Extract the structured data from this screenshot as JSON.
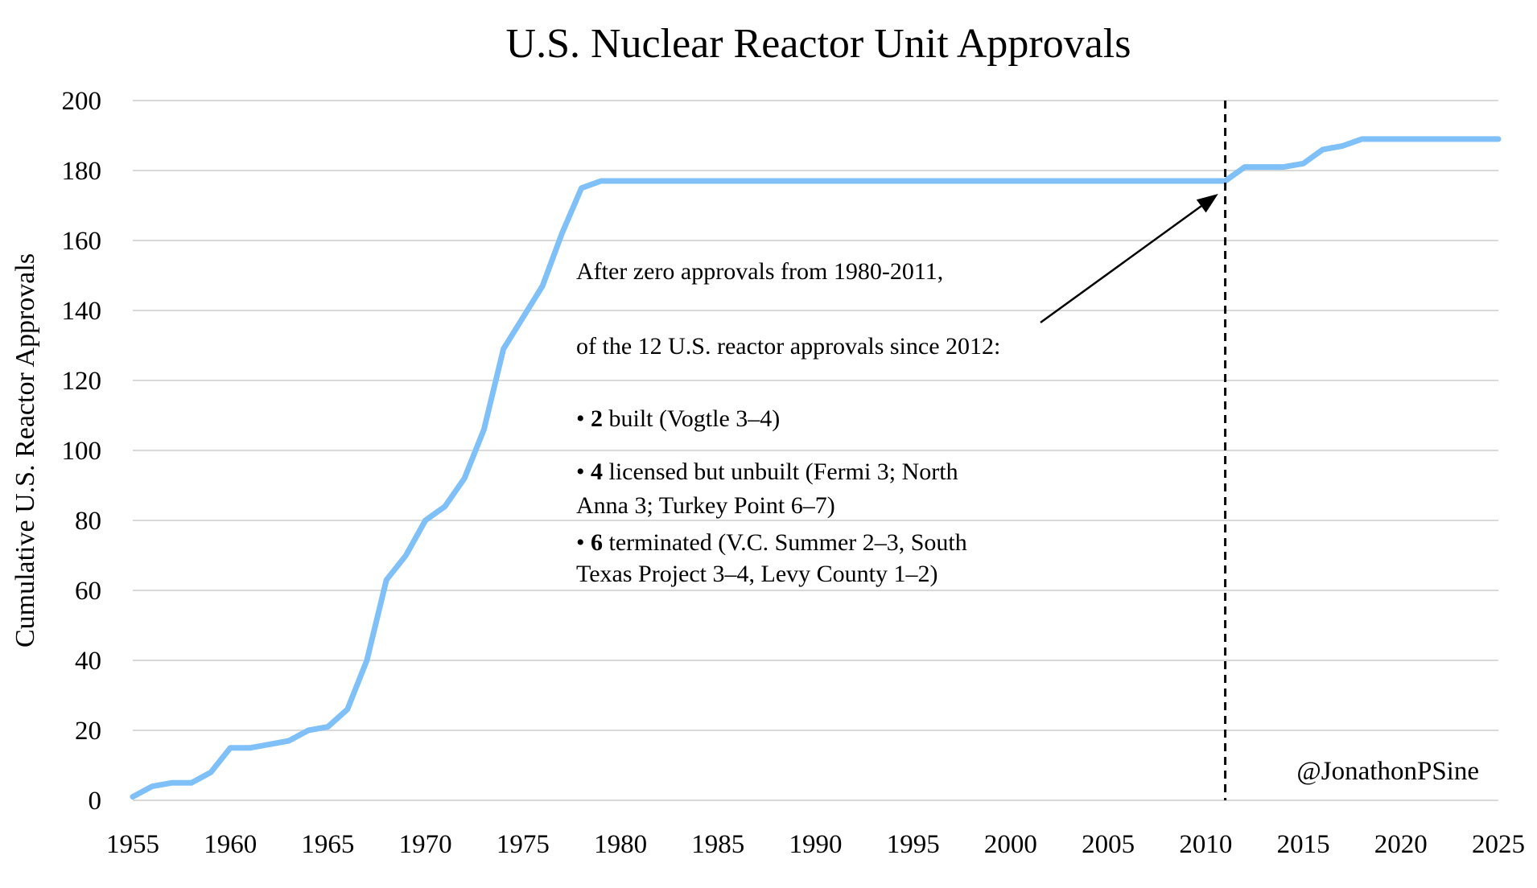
{
  "chart_data": {
    "type": "line",
    "title": "U.S. Nuclear Reactor Unit Approvals",
    "xlabel": "",
    "ylabel": "Cumulative U.S. Reactor Approvals",
    "xlim": [
      1955,
      2025
    ],
    "ylim": [
      0,
      200
    ],
    "x_ticks": [
      1955,
      1960,
      1965,
      1970,
      1975,
      1980,
      1985,
      1990,
      1995,
      2000,
      2005,
      2010,
      2015,
      2020,
      2025
    ],
    "y_ticks": [
      0,
      20,
      40,
      60,
      80,
      100,
      120,
      140,
      160,
      180,
      200
    ],
    "grid": "horizontal",
    "series": [
      {
        "name": "Cumulative U.S. Reactor Approvals",
        "color": "#7ec0f7",
        "x": [
          1955,
          1956,
          1957,
          1958,
          1959,
          1960,
          1961,
          1962,
          1963,
          1964,
          1965,
          1966,
          1967,
          1968,
          1969,
          1970,
          1971,
          1972,
          1973,
          1974,
          1975,
          1976,
          1977,
          1978,
          1979,
          1980,
          1985,
          1990,
          1995,
          2000,
          2005,
          2010,
          2011,
          2012,
          2013,
          2014,
          2015,
          2016,
          2017,
          2018,
          2019,
          2020,
          2021,
          2022,
          2023,
          2024,
          2025
        ],
        "values": [
          1,
          4,
          5,
          5,
          8,
          15,
          15,
          16,
          17,
          20,
          21,
          26,
          40,
          63,
          70,
          80,
          84,
          92,
          106,
          129,
          138,
          147,
          162,
          175,
          177,
          177,
          177,
          177,
          177,
          177,
          177,
          177,
          177,
          181,
          181,
          181,
          182,
          186,
          187,
          189,
          189,
          189,
          189,
          189,
          189,
          189,
          189
        ]
      }
    ],
    "reference_line": {
      "x": 2011,
      "style": "dashed",
      "color": "#000000"
    },
    "annotation": {
      "arrow_target": {
        "x": 2010.8,
        "y": 177
      },
      "line1": "After zero approvals from 1980-2011,",
      "line2": "of the 12 U.S. reactor approvals since 2012:",
      "bullets": [
        {
          "bullet": "• ",
          "count": "2",
          "text1": " built (Vogtle 3–4)",
          "text2": ""
        },
        {
          "bullet": "• ",
          "count": "4",
          "text1": " licensed but unbuilt (Fermi 3; North",
          "text2": "Anna 3; Turkey Point 6–7)"
        },
        {
          "bullet": "• ",
          "count": "6",
          "text1": " terminated (V.C. Summer 2–3, South",
          "text2": "Texas Project 3–4, Levy County 1–2)"
        }
      ]
    },
    "credit": "@JonathonPSine",
    "colors": {
      "grid": "#d9d9d9",
      "credit": "#bfbfbf"
    }
  }
}
